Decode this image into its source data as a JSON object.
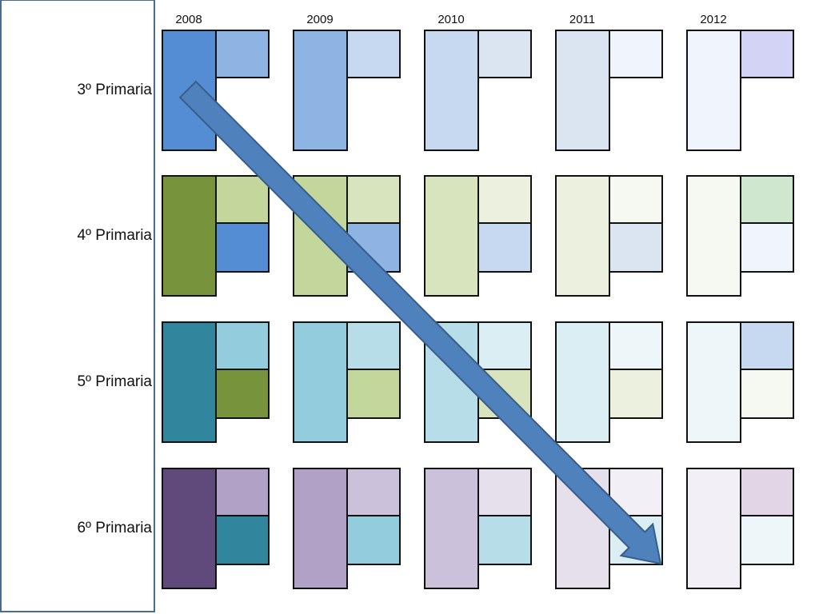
{
  "years": [
    "2008",
    "2009",
    "2010",
    "2011",
    "2012"
  ],
  "grades": [
    {
      "label": "3º Primaria",
      "blocks": [
        {
          "main": "#548dd4",
          "top": "#8eb4e3",
          "bottom": null
        },
        {
          "main": "#8eb4e3",
          "top": "#c6d9f1",
          "bottom": null
        },
        {
          "main": "#c6d9f1",
          "top": "#dbe5f1",
          "bottom": null
        },
        {
          "main": "#dbe5f1",
          "top": "#f0f4fc",
          "bottom": null
        },
        {
          "main": "#f0f4fc",
          "top": "#d3d3f5",
          "bottom": null
        }
      ]
    },
    {
      "label": "4º Primaria",
      "blocks": [
        {
          "main": "#77933c",
          "top": "#c3d69b",
          "bottom": "#548dd4"
        },
        {
          "main": "#c3d69b",
          "top": "#d7e4bd",
          "bottom": "#8eb4e3"
        },
        {
          "main": "#d7e4bd",
          "top": "#ebf1de",
          "bottom": "#c6d9f1"
        },
        {
          "main": "#ebf1de",
          "top": "#f6f9f1",
          "bottom": "#dbe5f1"
        },
        {
          "main": "#f6f9f1",
          "top": "#cfe6cf",
          "bottom": "#f0f4fc"
        }
      ]
    },
    {
      "label": "5º Primaria",
      "blocks": [
        {
          "main": "#31859c",
          "top": "#93cddd",
          "bottom": "#77933c"
        },
        {
          "main": "#93cddd",
          "top": "#b7dee8",
          "bottom": "#c3d69b"
        },
        {
          "main": "#b7dee8",
          "top": "#dbeef3",
          "bottom": "#d7e4bd"
        },
        {
          "main": "#dbeef3",
          "top": "#edf7f9",
          "bottom": "#ebf1de"
        },
        {
          "main": "#edf7f9",
          "top": "#c6d9f1",
          "bottom": "#f6f9f1"
        }
      ]
    },
    {
      "label": "6º Primaria",
      "blocks": [
        {
          "main": "#604a7b",
          "top": "#b2a1c7",
          "bottom": "#31859c"
        },
        {
          "main": "#b2a1c7",
          "top": "#ccc1da",
          "bottom": "#93cddd"
        },
        {
          "main": "#ccc1da",
          "top": "#e5e0ec",
          "bottom": "#b7dee8"
        },
        {
          "main": "#e5e0ec",
          "top": "#f2eff6",
          "bottom": "#dbeef3"
        },
        {
          "main": "#f2eff6",
          "top": "#e1d5e6",
          "bottom": "#edf7f9"
        }
      ]
    }
  ],
  "arrow": {
    "fill": "#4f81bd",
    "stroke": "#385d8a"
  }
}
